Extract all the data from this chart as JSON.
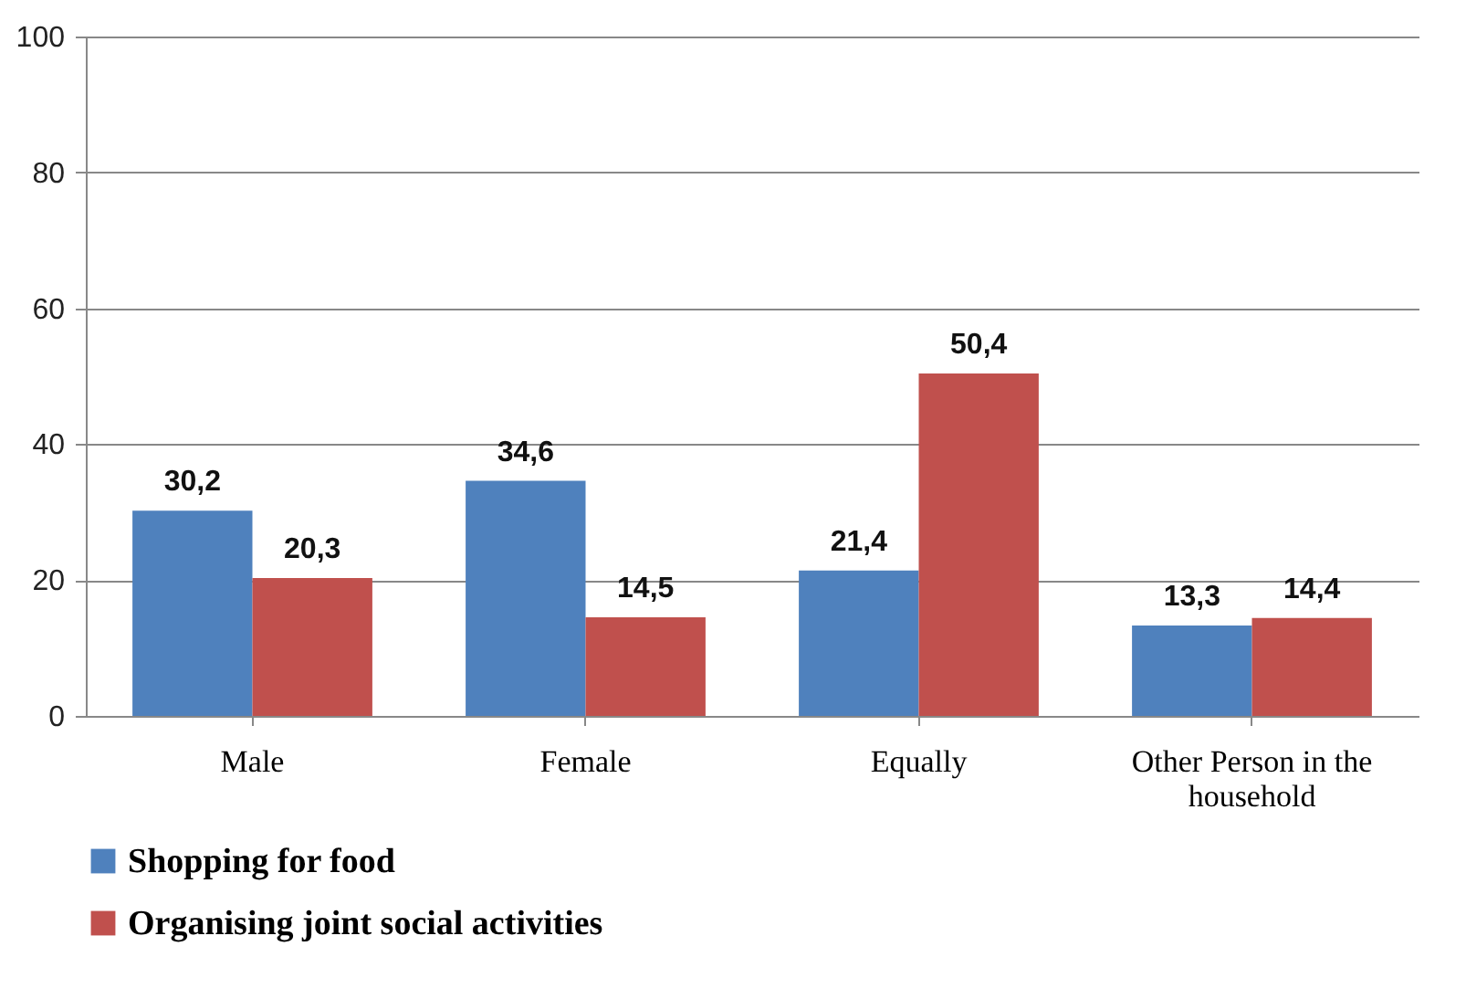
{
  "chart_data": {
    "type": "bar",
    "categories": [
      "Male",
      "Female",
      "Equally",
      "Other Person in the household"
    ],
    "series": [
      {
        "name": "Shopping for food",
        "color": "#4f81bd",
        "values": [
          30.2,
          34.6,
          21.4,
          13.3
        ],
        "value_labels": [
          "30,2",
          "34,6",
          "21,4",
          "13,3"
        ]
      },
      {
        "name": "Organising joint social activities",
        "color": "#c0504d",
        "values": [
          20.3,
          14.5,
          50.4,
          14.4
        ],
        "value_labels": [
          "20,3",
          "14,5",
          "50,4",
          "14,4"
        ]
      }
    ],
    "ylim": [
      0,
      100
    ],
    "yticks": [
      0,
      20,
      40,
      60,
      80,
      100
    ],
    "grid": "y",
    "legend": "bottom"
  }
}
